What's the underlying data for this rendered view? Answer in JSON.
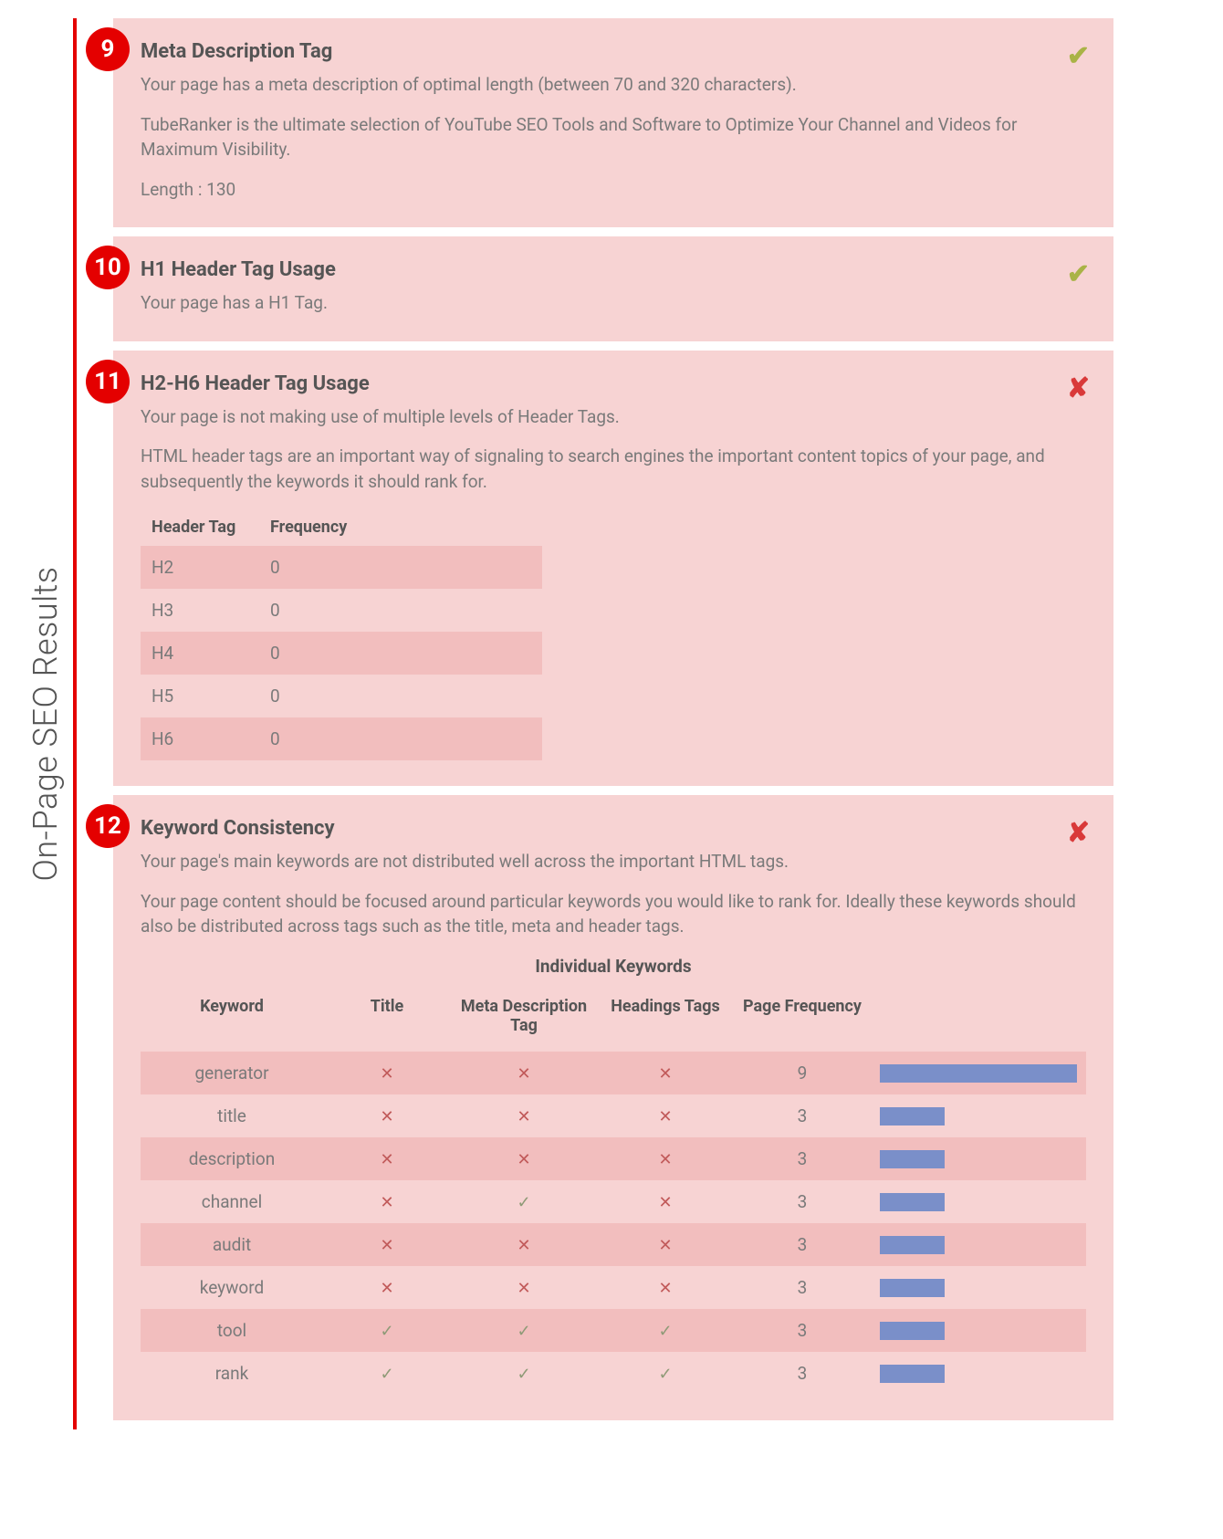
{
  "side_label": "On-Page SEO Results",
  "colors": {
    "section_bg": "#f7d3d3",
    "section_alt": "#f2bebe",
    "badge_bg": "#e40000",
    "check": "#a9b346",
    "x": "#d93939",
    "bar": "#7a8fc9",
    "text": "#7a7a7a",
    "title": "#555"
  },
  "sections": {
    "s9": {
      "num": "9",
      "status": "check",
      "title": "Meta Description Tag",
      "line1": "Your page has a meta description of optimal length (between 70 and 320 characters).",
      "line2": "TubeRanker is the ultimate selection of YouTube SEO Tools and Software to Optimize Your Channel and Videos for Maximum Visibility.",
      "line3": "Length : 130"
    },
    "s10": {
      "num": "10",
      "status": "check",
      "title": "H1 Header Tag Usage",
      "line1": "Your page has a H1 Tag."
    },
    "s11": {
      "num": "11",
      "status": "x",
      "title": "H2-H6 Header Tag Usage",
      "line1": "Your page is not making use of multiple levels of Header Tags.",
      "line2": "HTML header tags are an important way of signaling to search engines the important content topics of your page, and subsequently the keywords it should rank for.",
      "table": {
        "h1": "Header Tag",
        "h2": "Frequency",
        "rows": [
          {
            "tag": "H2",
            "freq": "0"
          },
          {
            "tag": "H3",
            "freq": "0"
          },
          {
            "tag": "H4",
            "freq": "0"
          },
          {
            "tag": "H5",
            "freq": "0"
          },
          {
            "tag": "H6",
            "freq": "0"
          }
        ]
      }
    },
    "s12": {
      "num": "12",
      "status": "x",
      "title": "Keyword Consistency",
      "line1": "Your page's main keywords are not distributed well across the important HTML tags.",
      "line2": "Your page content should be focused around particular keywords you would like to rank for. Ideally these keywords should also be distributed across tags such as the title, meta and header tags.",
      "kw_title": "Individual Keywords",
      "headers": {
        "c1": "Keyword",
        "c2": "Title",
        "c3": "Meta Description Tag",
        "c4": "Headings Tags",
        "c5": "Page Frequency"
      },
      "rows": [
        {
          "kw": "generator",
          "title": "x",
          "meta": "x",
          "head": "x",
          "freq": "9",
          "bar": 100
        },
        {
          "kw": "title",
          "title": "x",
          "meta": "x",
          "head": "x",
          "freq": "3",
          "bar": 33
        },
        {
          "kw": "description",
          "title": "x",
          "meta": "x",
          "head": "x",
          "freq": "3",
          "bar": 33
        },
        {
          "kw": "channel",
          "title": "x",
          "meta": "check",
          "head": "x",
          "freq": "3",
          "bar": 33
        },
        {
          "kw": "audit",
          "title": "x",
          "meta": "x",
          "head": "x",
          "freq": "3",
          "bar": 33
        },
        {
          "kw": "keyword",
          "title": "x",
          "meta": "x",
          "head": "x",
          "freq": "3",
          "bar": 33
        },
        {
          "kw": "tool",
          "title": "check",
          "meta": "check",
          "head": "check",
          "freq": "3",
          "bar": 33
        },
        {
          "kw": "rank",
          "title": "check",
          "meta": "check",
          "head": "check",
          "freq": "3",
          "bar": 33
        }
      ]
    }
  }
}
